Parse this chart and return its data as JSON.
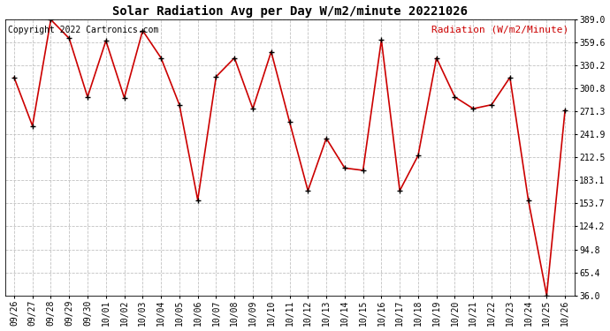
{
  "title": "Solar Radiation Avg per Day W/m2/minute 20221026",
  "copyright_text": "Copyright 2022 Cartronics.com",
  "legend_text": "Radiation (W/m2/Minute)",
  "background_color": "#ffffff",
  "plot_bg_color": "#ffffff",
  "line_color": "#cc0000",
  "marker_color": "#000000",
  "grid_color": "#bbbbbb",
  "dates": [
    "09/26",
    "09/27",
    "09/28",
    "09/29",
    "09/30",
    "10/01",
    "10/02",
    "10/03",
    "10/04",
    "10/05",
    "10/06",
    "10/07",
    "10/08",
    "10/09",
    "10/10",
    "10/11",
    "10/12",
    "10/13",
    "10/14",
    "10/15",
    "10/16",
    "10/17",
    "10/18",
    "10/19",
    "10/20",
    "10/21",
    "10/22",
    "10/23",
    "10/24",
    "10/25",
    "10/26"
  ],
  "values": [
    315.0,
    253.0,
    389.0,
    365.0,
    290.0,
    362.0,
    289.0,
    375.0,
    340.0,
    280.0,
    158.0,
    316.0,
    340.0,
    275.0,
    348.0,
    258.0,
    170.0,
    237.0,
    199.0,
    196.0,
    363.0,
    170.0,
    215.0,
    340.0,
    290.0,
    275.0,
    280.0,
    315.0,
    158.0,
    36.0,
    273.0
  ],
  "yticks": [
    36.0,
    65.4,
    94.8,
    124.2,
    153.7,
    183.1,
    212.5,
    241.9,
    271.3,
    300.8,
    330.2,
    359.6,
    389.0
  ],
  "ylim": [
    36.0,
    389.0
  ],
  "title_fontsize": 10,
  "tick_fontsize": 7,
  "legend_fontsize": 8,
  "copyright_fontsize": 7
}
